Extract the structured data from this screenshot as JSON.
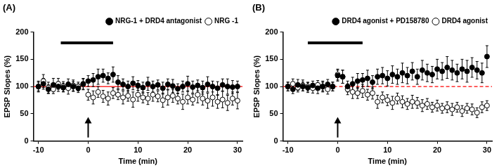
{
  "chart_data": [
    {
      "type": "scatter",
      "title": "(A)",
      "x_label": "Time (min)",
      "y_label": "EPSP Slopes (%)",
      "xlim": [
        -11,
        31
      ],
      "xticks": [
        -10,
        0,
        10,
        20,
        30
      ],
      "ylim": [
        0,
        200
      ],
      "yticks": [
        0,
        50,
        100,
        150,
        200
      ],
      "grid": false,
      "legend": "top-right",
      "hline": {
        "value": 100,
        "color": "#ff0000",
        "line_style": "solid"
      },
      "application": {
        "start": -5.5,
        "end": 5,
        "level": 180
      },
      "arrow_x": 0,
      "x": [
        -10,
        -9,
        -8,
        -7,
        -6,
        -5,
        -4,
        -3,
        -2,
        -1,
        0,
        1,
        2,
        3,
        4,
        5,
        6,
        7,
        8,
        9,
        10,
        11,
        12,
        13,
        14,
        15,
        16,
        17,
        18,
        19,
        20,
        21,
        22,
        23,
        24,
        25,
        26,
        27,
        28,
        29,
        30
      ],
      "series": [
        {
          "name": "NRG-1 + DRD4 antagonist",
          "color": "#000000",
          "marker": "circle",
          "values": [
            100,
            105,
            95,
            103,
            100,
            98,
            104,
            100,
            97,
            105,
            110,
            112,
            118,
            120,
            115,
            122,
            108,
            104,
            100,
            106,
            102,
            98,
            105,
            100,
            103,
            97,
            104,
            101,
            96,
            100,
            105,
            99,
            102,
            98,
            104,
            100,
            97,
            103,
            100,
            99,
            100
          ],
          "errors": [
            8,
            10,
            8,
            12,
            9,
            8,
            10,
            9,
            8,
            10,
            10,
            12,
            14,
            12,
            10,
            14,
            12,
            10,
            10,
            12,
            9,
            10,
            12,
            10,
            9,
            11,
            10,
            12,
            9,
            10,
            14,
            11,
            10,
            12,
            14,
            10,
            12,
            11,
            14,
            12,
            10
          ]
        },
        {
          "name": "NRG -1",
          "color": "#000000",
          "marker": "open_circle",
          "values": [
            100,
            110,
            98,
            95,
            105,
            100,
            97,
            102,
            100,
            104,
            85,
            80,
            90,
            82,
            78,
            88,
            85,
            80,
            83,
            76,
            85,
            80,
            78,
            85,
            82,
            75,
            80,
            83,
            78,
            72,
            80,
            76,
            85,
            78,
            74,
            80,
            72,
            76,
            70,
            78,
            74
          ],
          "errors": [
            10,
            12,
            10,
            8,
            10,
            9,
            11,
            10,
            8,
            10,
            10,
            12,
            10,
            11,
            12,
            10,
            9,
            12,
            10,
            14,
            12,
            10,
            11,
            12,
            10,
            13,
            14,
            12,
            10,
            14,
            12,
            10,
            15,
            12,
            14,
            16,
            12,
            15,
            14,
            12,
            15
          ]
        }
      ]
    },
    {
      "type": "scatter",
      "title": "(B)",
      "x_label": "Time (min)",
      "y_label": "EPSP Slopes (%)",
      "xlim": [
        -11,
        31
      ],
      "xticks": [
        -10,
        0,
        10,
        20,
        30
      ],
      "ylim": [
        0,
        200
      ],
      "yticks": [
        0,
        50,
        100,
        150,
        200
      ],
      "grid": false,
      "legend": "top-right",
      "hline": {
        "value": 100,
        "color": "#ff0000",
        "line_style": "dashed"
      },
      "application": {
        "start": -6,
        "end": 5,
        "level": 180
      },
      "arrow_x": 0,
      "x": [
        -10,
        -9,
        -8,
        -7,
        -6,
        -5,
        -4,
        -3,
        -2,
        -1,
        0,
        1,
        2,
        3,
        4,
        5,
        6,
        7,
        8,
        9,
        10,
        11,
        12,
        13,
        14,
        15,
        16,
        17,
        18,
        19,
        20,
        21,
        22,
        23,
        24,
        25,
        26,
        27,
        28,
        29,
        30
      ],
      "series": [
        {
          "name": "DRD4 agonist + PD158780",
          "color": "#000000",
          "marker": "circle",
          "values": [
            100,
            95,
            103,
            100,
            98,
            102,
            97,
            100,
            104,
            100,
            120,
            118,
            100,
            105,
            110,
            112,
            115,
            108,
            118,
            120,
            115,
            122,
            118,
            125,
            120,
            128,
            118,
            130,
            125,
            122,
            132,
            128,
            135,
            130,
            125,
            132,
            128,
            135,
            130,
            125,
            155
          ],
          "errors": [
            8,
            8,
            10,
            8,
            9,
            8,
            10,
            8,
            9,
            8,
            10,
            12,
            10,
            12,
            14,
            12,
            15,
            12,
            14,
            15,
            14,
            16,
            14,
            18,
            15,
            16,
            14,
            18,
            16,
            15,
            18,
            16,
            20,
            18,
            16,
            18,
            20,
            18,
            16,
            18,
            20
          ]
        },
        {
          "name": "DRD4 agonist",
          "color": "#000000",
          "marker": "open_circle",
          "values": [
            100,
            105,
            98,
            102,
            100,
            97,
            103,
            100,
            95,
            100,
            122,
            118,
            95,
            90,
            88,
            92,
            85,
            88,
            72,
            80,
            75,
            70,
            78,
            72,
            68,
            72,
            70,
            65,
            68,
            62,
            65,
            60,
            62,
            58,
            62,
            55,
            60,
            58,
            52,
            62,
            65
          ],
          "errors": [
            8,
            9,
            8,
            10,
            8,
            9,
            8,
            10,
            9,
            8,
            10,
            12,
            10,
            12,
            10,
            12,
            10,
            11,
            12,
            10,
            10,
            12,
            10,
            11,
            10,
            12,
            10,
            11,
            10,
            9,
            10,
            9,
            10,
            11,
            9,
            10,
            9,
            10,
            9,
            10,
            9
          ]
        }
      ]
    }
  ]
}
